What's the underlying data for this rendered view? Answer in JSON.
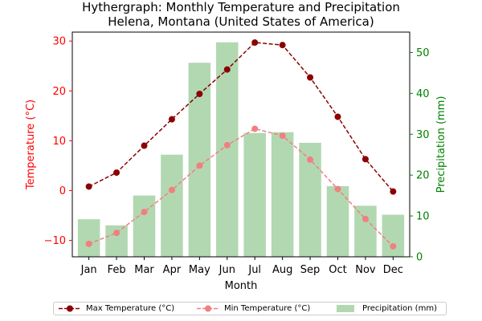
{
  "chart_data": {
    "type": "bar+line",
    "title": "Hythergraph: Monthly Temperature and Precipitation",
    "subtitle": "Helena, Montana (United States of America)",
    "xlabel": "Month",
    "ylabel_left": "Temperature (°C)",
    "ylabel_right": "Precipitation (mm)",
    "categories": [
      "Jan",
      "Feb",
      "Mar",
      "Apr",
      "May",
      "Jun",
      "Jul",
      "Aug",
      "Sep",
      "Oct",
      "Nov",
      "Dec"
    ],
    "ylim_left": [
      -13.3,
      31.8
    ],
    "ylim_right": [
      0,
      55
    ],
    "yticks_left": [
      -10,
      0,
      10,
      20,
      30
    ],
    "yticks_right": [
      0,
      10,
      20,
      30,
      40,
      50
    ],
    "series": [
      {
        "name": "Max Temperature (°C)",
        "axis": "left",
        "kind": "line",
        "color": "#8b0000",
        "values": [
          0.8,
          3.6,
          9.0,
          14.3,
          19.4,
          24.3,
          29.7,
          29.2,
          22.7,
          14.8,
          6.3,
          -0.2
        ]
      },
      {
        "name": "Min Temperature (°C)",
        "axis": "left",
        "kind": "line",
        "color": "#f08080",
        "values": [
          -10.7,
          -8.5,
          -4.3,
          0.1,
          5.0,
          9.1,
          12.4,
          11.0,
          6.2,
          0.3,
          -5.7,
          -11.2
        ]
      },
      {
        "name": "Precipitation (mm)",
        "axis": "right",
        "kind": "bar",
        "color": "#b2d8b2",
        "values": [
          9.2,
          7.7,
          15.0,
          25.0,
          47.5,
          52.5,
          30.3,
          30.5,
          27.9,
          17.3,
          12.5,
          10.3
        ]
      }
    ],
    "legend_position": "bottom-center",
    "colors": {
      "left_axis": "#ff0000",
      "right_axis": "#008000"
    }
  }
}
